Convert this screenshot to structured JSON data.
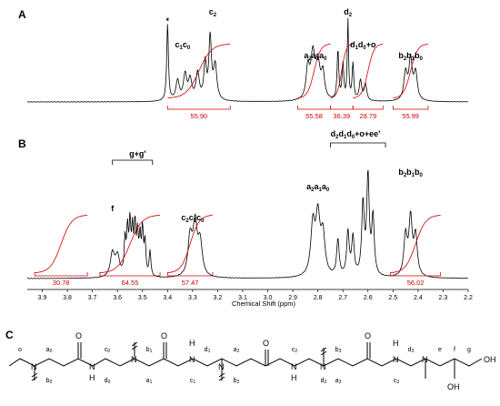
{
  "panel_letters": [
    "A",
    "B",
    "C"
  ],
  "chart_data": [
    {
      "type": "line",
      "panel": "A",
      "peak_labels": [
        {
          "text": "*",
          "ppm": 3.4
        },
        {
          "text": "c1c0",
          "ppm": 3.34
        },
        {
          "text": "c2",
          "ppm": 3.22
        },
        {
          "text": "a2a1a0",
          "ppm": 2.81
        },
        {
          "text": "d2",
          "ppm": 2.68
        },
        {
          "text": "d1d0+o",
          "ppm": 2.62
        },
        {
          "text": "b2b1b0",
          "ppm": 2.43
        }
      ],
      "integrations": [
        {
          "value": "55.90",
          "from": 3.4,
          "to": 3.15
        },
        {
          "value": "55.58",
          "from": 2.88,
          "to": 2.75
        },
        {
          "value": "36.39",
          "from": 2.75,
          "to": 2.66
        },
        {
          "value": "28.79",
          "from": 2.66,
          "to": 2.54
        },
        {
          "value": "55.99",
          "from": 2.5,
          "to": 2.36
        }
      ]
    },
    {
      "type": "line",
      "panel": "B",
      "xlabel": "Chemical Shift (ppm)",
      "x_ticks": [
        3.9,
        3.8,
        3.7,
        3.6,
        3.5,
        3.4,
        3.3,
        3.2,
        3.1,
        3.0,
        2.9,
        2.8,
        2.7,
        2.6,
        2.5,
        2.4,
        2.3,
        2.2
      ],
      "xlim": [
        3.96,
        2.2
      ],
      "peak_labels": [
        {
          "text": "f",
          "ppm": 3.62
        },
        {
          "text": "g+g'",
          "ppm": 3.52
        },
        {
          "text": "c2c1c0",
          "ppm": 3.3
        },
        {
          "text": "a2a1a0",
          "ppm": 2.8
        },
        {
          "text": "d2d1d0+o+ee'",
          "ppm": 2.65
        },
        {
          "text": "b2b1b0",
          "ppm": 2.43
        }
      ],
      "integrations": [
        {
          "value": "30.78",
          "from": 3.93,
          "to": 3.72
        },
        {
          "value": "64.55",
          "from": 3.67,
          "to": 3.43
        },
        {
          "value": "57.47",
          "from": 3.4,
          "to": 3.22
        },
        {
          "value": "56.02",
          "from": 2.51,
          "to": 2.31
        }
      ]
    }
  ],
  "structure": {
    "atom_labels": {
      "n": "N",
      "o": "O",
      "h": "H",
      "oh": "OH"
    },
    "position_labels": [
      "o",
      "a0",
      "b0",
      "c0",
      "d0",
      "b1",
      "a1",
      "c1",
      "d1",
      "a2",
      "b2",
      "c2",
      "d2",
      "b3",
      "a3",
      "c3",
      "d3",
      "e",
      "f",
      "g"
    ]
  }
}
